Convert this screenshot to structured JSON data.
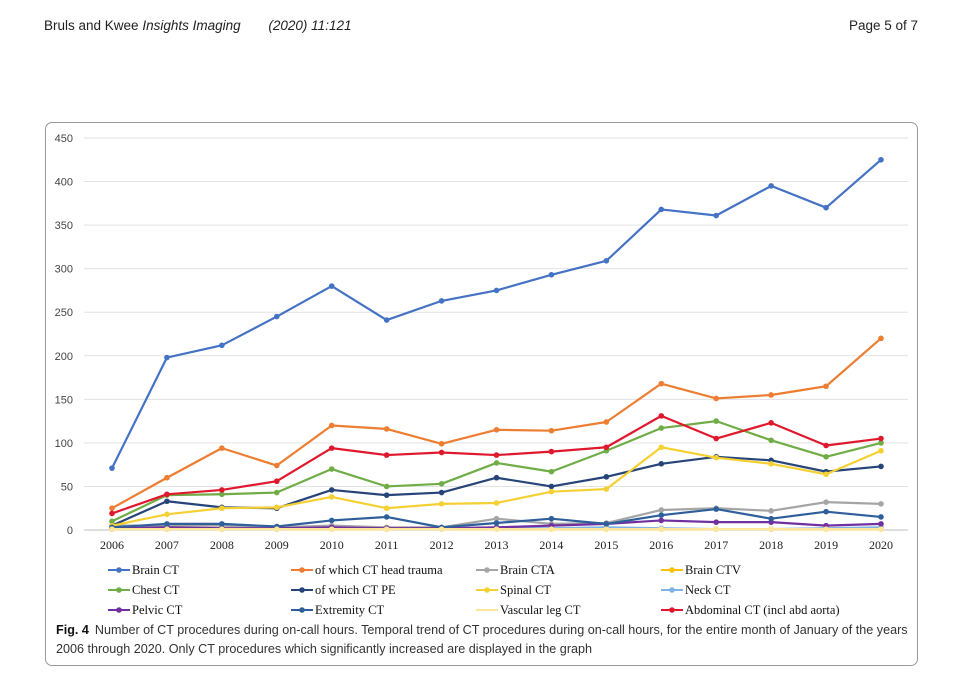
{
  "header": {
    "authors": "Bruls and Kwee",
    "journal": "Insights Imaging",
    "citation": "(2020) 11:121",
    "page": "Page 5 of 7"
  },
  "caption": {
    "label": "Fig. 4",
    "text": "Number of CT procedures during on-call hours. Temporal trend of CT procedures during on-call hours, for the entire month of January of the years 2006 through 2020. Only CT procedures which significantly increased are displayed in the graph"
  },
  "chart_data": {
    "type": "line",
    "title": "",
    "xlabel": "",
    "ylabel": "",
    "ylim": [
      0,
      450
    ],
    "yticks": [
      0,
      50,
      100,
      150,
      200,
      250,
      300,
      350,
      400,
      450
    ],
    "grid": true,
    "legend_position": "bottom",
    "x": [
      "2006",
      "2007",
      "2008",
      "2009",
      "2010",
      "2011",
      "2012",
      "2013",
      "2014",
      "2015",
      "2016",
      "2017",
      "2018",
      "2019",
      "2020"
    ],
    "series": [
      {
        "name": "Brain CT",
        "color": "#4472c4",
        "values": [
          71,
          198,
          212,
          245,
          280,
          241,
          263,
          275,
          293,
          309,
          368,
          361,
          395,
          370,
          425
        ]
      },
      {
        "name": "of which CT head trauma",
        "color": "#ed7d31",
        "values": [
          25,
          60,
          94,
          74,
          120,
          116,
          99,
          115,
          114,
          124,
          168,
          151,
          155,
          165,
          220
        ]
      },
      {
        "name": "Brain CTA",
        "color": "#a5a5a5",
        "values": [
          5,
          5,
          5,
          3,
          5,
          3,
          3,
          13,
          7,
          8,
          23,
          25,
          22,
          32,
          30
        ]
      },
      {
        "name": "Brain CTV",
        "color": "#ffc000",
        "values": [
          1,
          1,
          1,
          1,
          1,
          1,
          1,
          1,
          1,
          1,
          1,
          1,
          1,
          1,
          1
        ]
      },
      {
        "name": "Chest CT",
        "color": "#70ad47",
        "values": [
          10,
          40,
          41,
          43,
          70,
          50,
          53,
          77,
          67,
          91,
          117,
          125,
          103,
          84,
          100
        ]
      },
      {
        "name": "of which CT PE",
        "color": "#264478",
        "values": [
          5,
          33,
          26,
          25,
          46,
          40,
          43,
          60,
          50,
          61,
          76,
          84,
          80,
          67,
          73
        ]
      },
      {
        "name": "Spinal CT",
        "color": "#f5d033",
        "values": [
          5,
          18,
          25,
          26,
          38,
          25,
          30,
          31,
          44,
          47,
          95,
          83,
          76,
          64,
          91
        ]
      },
      {
        "name": "Neck CT",
        "color": "#7fb3e6",
        "values": [
          1,
          1,
          1,
          1,
          2,
          1,
          1,
          2,
          2,
          3,
          2,
          1,
          1,
          2,
          3
        ]
      },
      {
        "name": "Pelvic CT",
        "color": "#7030a0",
        "values": [
          2,
          3,
          2,
          2,
          3,
          2,
          2,
          3,
          5,
          7,
          11,
          9,
          9,
          5,
          7
        ]
      },
      {
        "name": "Extremity CT",
        "color": "#2e5f9a",
        "values": [
          3,
          7,
          7,
          4,
          11,
          15,
          3,
          8,
          13,
          7,
          17,
          24,
          13,
          21,
          15
        ]
      },
      {
        "name": "Vascular leg CT",
        "color": "#ffe699",
        "values": [
          1,
          1,
          1,
          1,
          1,
          1,
          1,
          1,
          1,
          1,
          1,
          1,
          1,
          1,
          1
        ]
      },
      {
        "name": "Abdominal CT (incl abd aorta)",
        "color": "#e0182d",
        "values": [
          19,
          41,
          46,
          56,
          94,
          86,
          89,
          86,
          90,
          95,
          131,
          105,
          123,
          97,
          105
        ]
      }
    ]
  }
}
